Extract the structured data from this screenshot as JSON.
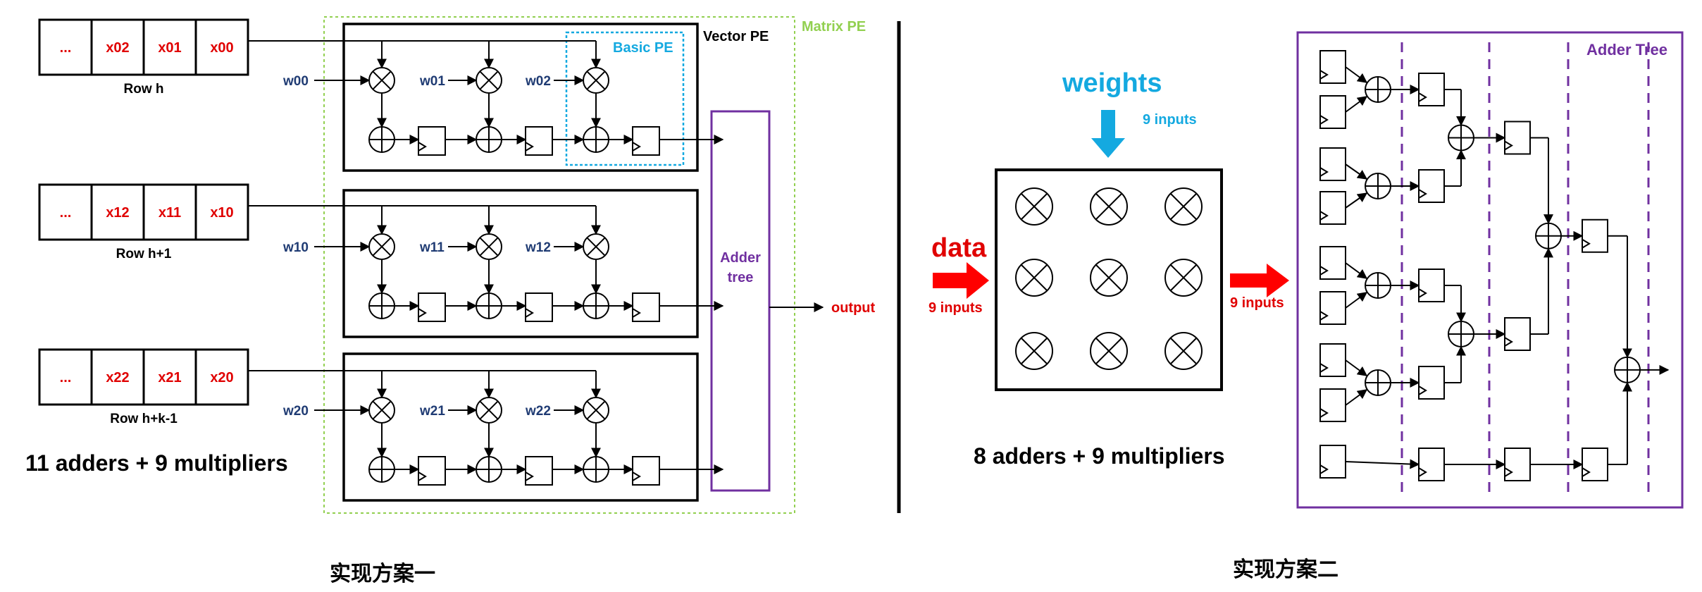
{
  "scheme1": {
    "caption": "实现方案一",
    "summary": "11 adders + 9 multipliers",
    "matrix_pe_label": "Matrix PE",
    "vector_pe_label": "Vector PE",
    "basic_pe_label": "Basic PE",
    "adder_tree_line1": "Adder",
    "adder_tree_line2": "tree",
    "output_label": "output",
    "rows": [
      {
        "label": "Row h",
        "cells": [
          "...",
          "x02",
          "x01",
          "x00"
        ],
        "weights": [
          "w00",
          "w01",
          "w02"
        ]
      },
      {
        "label": "Row h+1",
        "cells": [
          "...",
          "x12",
          "x11",
          "x10"
        ],
        "weights": [
          "w10",
          "w11",
          "w12"
        ]
      },
      {
        "label": "Row h+k-1",
        "cells": [
          "...",
          "x22",
          "x21",
          "x20"
        ],
        "weights": [
          "w20",
          "w21",
          "w22"
        ]
      }
    ]
  },
  "scheme2": {
    "caption": "实现方案二",
    "summary": "8 adders + 9 multipliers",
    "weights_label": "weights",
    "weights_inputs": "9 inputs",
    "data_label": "data",
    "data_inputs": "9 inputs",
    "mid_inputs": "9 inputs",
    "adder_tree_label": "Adder Tree"
  },
  "colors": {
    "red": "#e00000",
    "navy": "#1f3b73",
    "cyan": "#14a9e0",
    "purple": "#7030a0",
    "green": "#92d050"
  }
}
